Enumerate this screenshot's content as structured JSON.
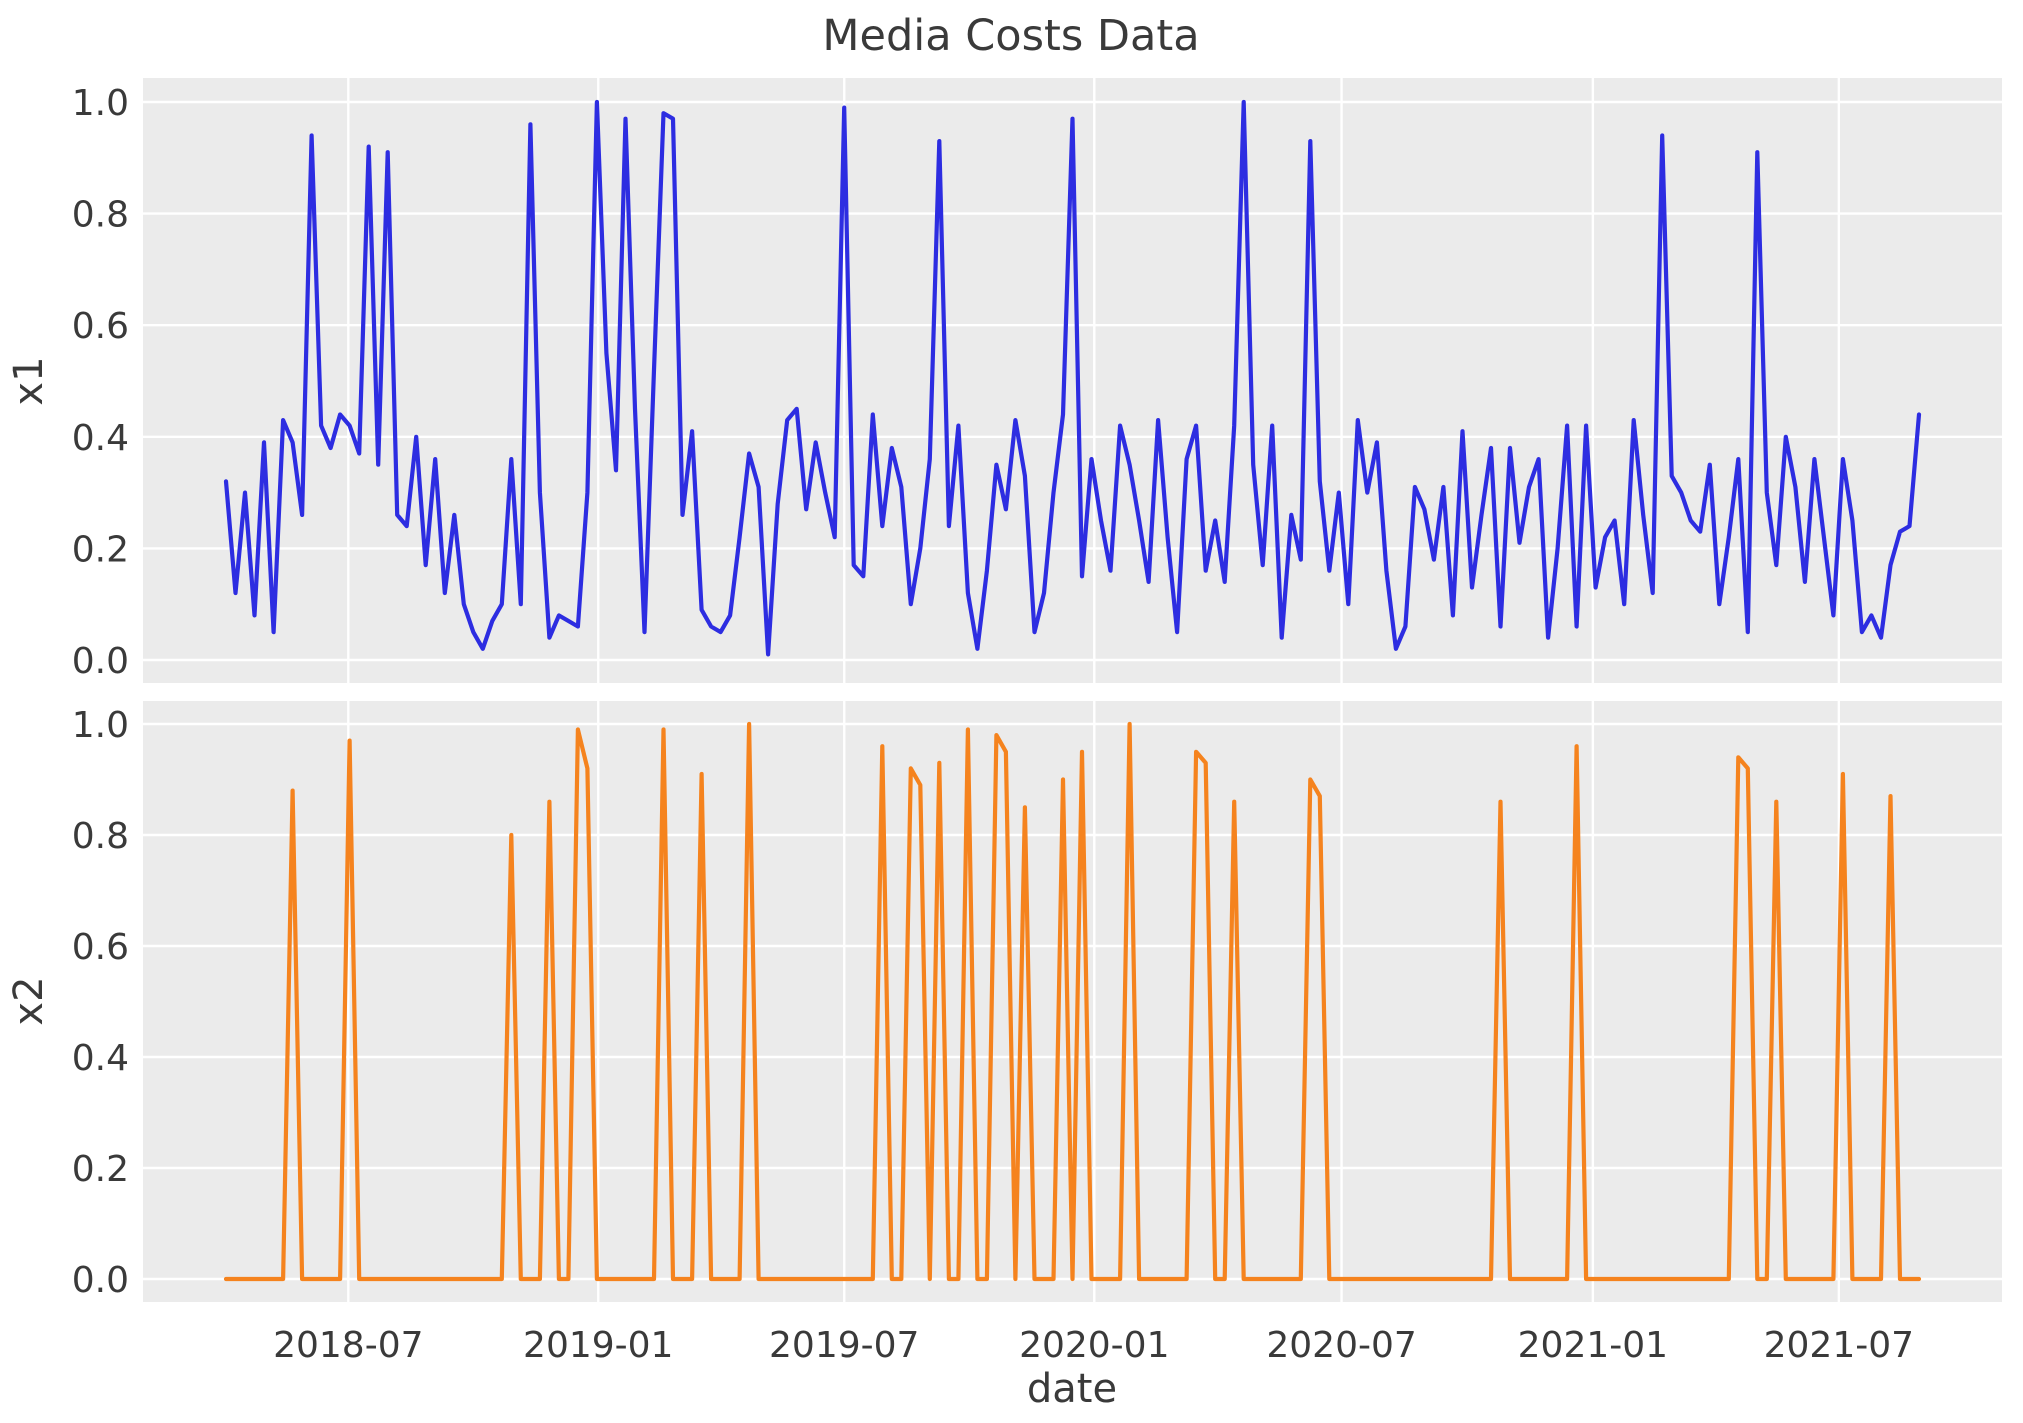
{
  "title": "Media Costs Data",
  "colors": {
    "x1_line": "#2d2de1",
    "x2_line": "#f5831e",
    "plot_background": "#ebebeb",
    "grid": "#ffffff",
    "text": "#3a3a3a"
  },
  "axes": {
    "x_label": "date",
    "x_tick_labels": [
      "2018-07",
      "2019-01",
      "2019-07",
      "2020-01",
      "2020-07",
      "2021-01",
      "2021-07"
    ],
    "x_tick_index_positions": [
      12.86,
      39.14,
      65.0,
      91.29,
      117.29,
      143.71,
      169.57
    ],
    "y_tick_labels": [
      "0.0",
      "0.2",
      "0.4",
      "0.6",
      "0.8",
      "1.0"
    ],
    "y_tick_values": [
      0.0,
      0.2,
      0.4,
      0.6,
      0.8,
      1.0
    ]
  },
  "chart_data": [
    {
      "type": "line",
      "name": "x1",
      "ylabel": "x1",
      "xlabel": "",
      "x_start_date": "2018-04-02",
      "x_step_days": 7,
      "n_points": 179,
      "ylim": [
        -0.042,
        1.043
      ],
      "grid": true,
      "legend": false,
      "values": [
        0.32,
        0.12,
        0.3,
        0.08,
        0.39,
        0.05,
        0.43,
        0.39,
        0.26,
        0.94,
        0.42,
        0.38,
        0.44,
        0.42,
        0.37,
        0.92,
        0.35,
        0.91,
        0.26,
        0.24,
        0.4,
        0.17,
        0.36,
        0.12,
        0.26,
        0.1,
        0.05,
        0.02,
        0.07,
        0.1,
        0.36,
        0.1,
        0.96,
        0.3,
        0.04,
        0.08,
        0.07,
        0.06,
        0.3,
        1.0,
        0.55,
        0.34,
        0.97,
        0.45,
        0.05,
        0.52,
        0.98,
        0.97,
        0.26,
        0.41,
        0.09,
        0.06,
        0.05,
        0.08,
        0.22,
        0.37,
        0.31,
        0.01,
        0.28,
        0.43,
        0.45,
        0.27,
        0.39,
        0.3,
        0.22,
        0.99,
        0.17,
        0.15,
        0.44,
        0.24,
        0.38,
        0.31,
        0.1,
        0.2,
        0.36,
        0.93,
        0.24,
        0.42,
        0.12,
        0.02,
        0.16,
        0.35,
        0.27,
        0.43,
        0.33,
        0.05,
        0.12,
        0.3,
        0.44,
        0.97,
        0.15,
        0.36,
        0.25,
        0.16,
        0.42,
        0.35,
        0.25,
        0.14,
        0.43,
        0.22,
        0.05,
        0.36,
        0.42,
        0.16,
        0.25,
        0.14,
        0.42,
        1.0,
        0.35,
        0.17,
        0.42,
        0.04,
        0.26,
        0.18,
        0.93,
        0.32,
        0.16,
        0.3,
        0.1,
        0.43,
        0.3,
        0.39,
        0.16,
        0.02,
        0.06,
        0.31,
        0.27,
        0.18,
        0.31,
        0.08,
        0.41,
        0.13,
        0.26,
        0.38,
        0.06,
        0.38,
        0.21,
        0.31,
        0.36,
        0.04,
        0.2,
        0.42,
        0.06,
        0.42,
        0.13,
        0.22,
        0.25,
        0.1,
        0.43,
        0.26,
        0.12,
        0.94,
        0.33,
        0.3,
        0.25,
        0.23,
        0.35,
        0.1,
        0.22,
        0.36,
        0.05,
        0.91,
        0.3,
        0.17,
        0.4,
        0.31,
        0.14,
        0.36,
        0.22,
        0.08,
        0.36,
        0.25,
        0.05,
        0.08,
        0.04,
        0.17,
        0.23,
        0.24,
        0.44
      ]
    },
    {
      "type": "line",
      "name": "x2",
      "ylabel": "x2",
      "xlabel": "date",
      "x_start_date": "2018-04-02",
      "x_step_days": 7,
      "n_points": 179,
      "ylim": [
        -0.042,
        1.043
      ],
      "grid": true,
      "legend": false,
      "values": [
        0,
        0,
        0,
        0,
        0,
        0,
        0,
        0.88,
        0,
        0,
        0,
        0,
        0,
        0.97,
        0,
        0,
        0,
        0,
        0,
        0,
        0,
        0,
        0,
        0,
        0,
        0,
        0,
        0,
        0,
        0,
        0.8,
        0,
        0,
        0,
        0.86,
        0,
        0,
        0.99,
        0.92,
        0,
        0,
        0,
        0,
        0,
        0,
        0,
        0.99,
        0,
        0,
        0,
        0.91,
        0,
        0,
        0,
        0,
        1.0,
        0,
        0,
        0,
        0,
        0,
        0,
        0,
        0,
        0,
        0,
        0,
        0,
        0,
        0.96,
        0,
        0,
        0.92,
        0.89,
        0,
        0.93,
        0,
        0,
        0.99,
        0,
        0,
        0.98,
        0.95,
        0,
        0.85,
        0,
        0,
        0,
        0.9,
        0,
        0.95,
        0,
        0,
        0,
        0,
        1.0,
        0,
        0,
        0,
        0,
        0,
        0,
        0.95,
        0.93,
        0,
        0,
        0.86,
        0,
        0,
        0,
        0,
        0,
        0,
        0,
        0.9,
        0.87,
        0,
        0,
        0,
        0,
        0,
        0,
        0,
        0,
        0,
        0,
        0,
        0,
        0,
        0,
        0,
        0,
        0,
        0,
        0.86,
        0,
        0,
        0,
        0,
        0,
        0,
        0,
        0.96,
        0,
        0,
        0,
        0,
        0,
        0,
        0,
        0,
        0,
        0,
        0,
        0,
        0,
        0,
        0,
        0,
        0.94,
        0.92,
        0,
        0,
        0.86,
        0,
        0,
        0,
        0,
        0,
        0,
        0.91,
        0,
        0,
        0,
        0,
        0.87,
        0,
        0,
        0
      ]
    }
  ]
}
